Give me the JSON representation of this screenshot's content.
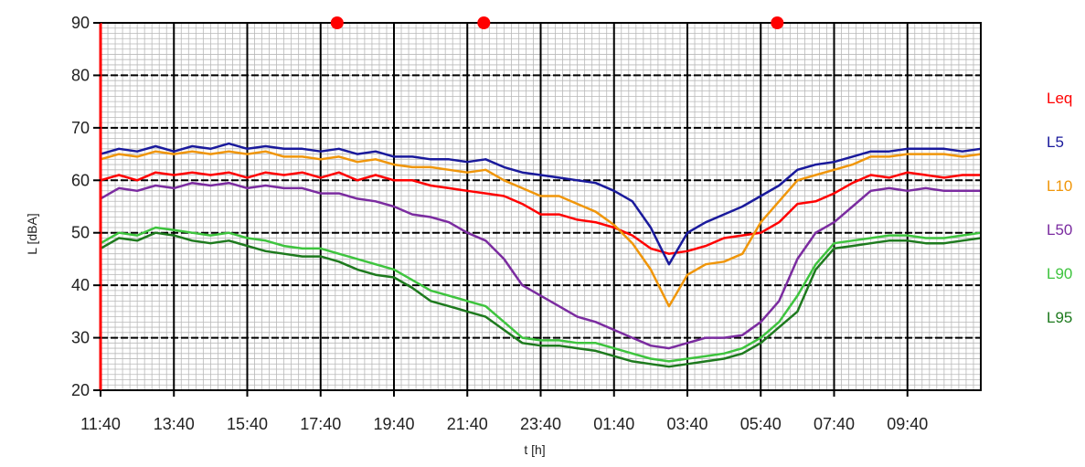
{
  "chart_data": {
    "type": "line",
    "xlabel": "t [h]",
    "ylabel": "L [dBA]",
    "ylim": [
      20,
      90
    ],
    "y_ticks": [
      90,
      80,
      70,
      60,
      50,
      40,
      30,
      20
    ],
    "x_tick_labels": [
      "11:40",
      "13:40",
      "15:40",
      "17:40",
      "19:40",
      "21:40",
      "23:40",
      "01:40",
      "03:40",
      "05:40",
      "07:40",
      "09:40"
    ],
    "grid": "on",
    "legend_placement": "right",
    "markers": [
      {
        "color": "#ff0000",
        "x_hours": 6.45
      },
      {
        "color": "#ff0000",
        "x_hours": 10.45
      },
      {
        "color": "#ff0000",
        "x_hours": 18.45
      }
    ],
    "series": [
      {
        "name": "Leq",
        "color": "#ff0000",
        "points": [
          [
            0,
            60
          ],
          [
            0.5,
            61
          ],
          [
            1,
            60
          ],
          [
            1.5,
            61.5
          ],
          [
            2,
            61
          ],
          [
            2.5,
            61.5
          ],
          [
            3,
            61
          ],
          [
            3.5,
            61.5
          ],
          [
            4,
            60.5
          ],
          [
            4.5,
            61.5
          ],
          [
            5,
            61
          ],
          [
            5.5,
            61.5
          ],
          [
            6,
            60.5
          ],
          [
            6.5,
            61.5
          ],
          [
            7,
            60
          ],
          [
            7.5,
            61
          ],
          [
            8,
            60
          ],
          [
            8.5,
            60
          ],
          [
            9,
            59
          ],
          [
            9.5,
            58.5
          ],
          [
            10,
            58
          ],
          [
            10.5,
            57.5
          ],
          [
            11,
            57
          ],
          [
            11.5,
            55.5
          ],
          [
            12,
            53.5
          ],
          [
            12.5,
            53.5
          ],
          [
            13,
            52.5
          ],
          [
            13.5,
            52
          ],
          [
            14,
            51
          ],
          [
            14.5,
            49.5
          ],
          [
            15,
            47
          ],
          [
            15.5,
            46
          ],
          [
            16,
            46.5
          ],
          [
            16.5,
            47.5
          ],
          [
            17,
            49
          ],
          [
            17.5,
            49.5
          ],
          [
            18,
            50
          ],
          [
            18.5,
            52
          ],
          [
            19,
            55.5
          ],
          [
            19.5,
            56
          ],
          [
            20,
            57.5
          ],
          [
            20.5,
            59.5
          ],
          [
            21,
            61
          ],
          [
            21.5,
            60.5
          ],
          [
            22,
            61.5
          ],
          [
            22.5,
            61
          ],
          [
            23,
            60.5
          ],
          [
            23.5,
            61
          ],
          [
            24,
            61
          ]
        ]
      },
      {
        "name": "L5",
        "color": "#1a1a9c",
        "points": [
          [
            0,
            65
          ],
          [
            0.5,
            66
          ],
          [
            1,
            65.5
          ],
          [
            1.5,
            66.5
          ],
          [
            2,
            65.5
          ],
          [
            2.5,
            66.5
          ],
          [
            3,
            66
          ],
          [
            3.5,
            67
          ],
          [
            4,
            66
          ],
          [
            4.5,
            66.5
          ],
          [
            5,
            66
          ],
          [
            5.5,
            66
          ],
          [
            6,
            65.5
          ],
          [
            6.5,
            66
          ],
          [
            7,
            65
          ],
          [
            7.5,
            65.5
          ],
          [
            8,
            64.5
          ],
          [
            8.5,
            64.5
          ],
          [
            9,
            64
          ],
          [
            9.5,
            64
          ],
          [
            10,
            63.5
          ],
          [
            10.5,
            64
          ],
          [
            11,
            62.5
          ],
          [
            11.5,
            61.5
          ],
          [
            12,
            61
          ],
          [
            12.5,
            60.5
          ],
          [
            13,
            60
          ],
          [
            13.5,
            59.5
          ],
          [
            14,
            58
          ],
          [
            14.5,
            56
          ],
          [
            15,
            51
          ],
          [
            15.5,
            44
          ],
          [
            16,
            50
          ],
          [
            16.5,
            52
          ],
          [
            17,
            53.5
          ],
          [
            17.5,
            55
          ],
          [
            18,
            57
          ],
          [
            18.5,
            59
          ],
          [
            19,
            62
          ],
          [
            19.5,
            63
          ],
          [
            20,
            63.5
          ],
          [
            20.5,
            64.5
          ],
          [
            21,
            65.5
          ],
          [
            21.5,
            65.5
          ],
          [
            22,
            66
          ],
          [
            22.5,
            66
          ],
          [
            23,
            66
          ],
          [
            23.5,
            65.5
          ],
          [
            24,
            66
          ]
        ]
      },
      {
        "name": "L10",
        "color": "#f0960a",
        "points": [
          [
            0,
            64
          ],
          [
            0.5,
            65
          ],
          [
            1,
            64.5
          ],
          [
            1.5,
            65.5
          ],
          [
            2,
            65
          ],
          [
            2.5,
            65.5
          ],
          [
            3,
            65
          ],
          [
            3.5,
            65.5
          ],
          [
            4,
            65
          ],
          [
            4.5,
            65.5
          ],
          [
            5,
            64.5
          ],
          [
            5.5,
            64.5
          ],
          [
            6,
            64
          ],
          [
            6.5,
            64.5
          ],
          [
            7,
            63.5
          ],
          [
            7.5,
            64
          ],
          [
            8,
            63
          ],
          [
            8.5,
            62.5
          ],
          [
            9,
            62.5
          ],
          [
            9.5,
            62
          ],
          [
            10,
            61.5
          ],
          [
            10.5,
            62
          ],
          [
            11,
            60
          ],
          [
            11.5,
            58.5
          ],
          [
            12,
            57
          ],
          [
            12.5,
            57
          ],
          [
            13,
            55.5
          ],
          [
            13.5,
            54
          ],
          [
            14,
            51.5
          ],
          [
            14.5,
            48
          ],
          [
            15,
            43
          ],
          [
            15.5,
            36
          ],
          [
            16,
            42
          ],
          [
            16.5,
            44
          ],
          [
            17,
            44.5
          ],
          [
            17.5,
            46
          ],
          [
            18,
            52
          ],
          [
            18.5,
            56
          ],
          [
            19,
            60
          ],
          [
            19.5,
            61
          ],
          [
            20,
            62
          ],
          [
            20.5,
            63
          ],
          [
            21,
            64.5
          ],
          [
            21.5,
            64.5
          ],
          [
            22,
            65
          ],
          [
            22.5,
            65
          ],
          [
            23,
            65
          ],
          [
            23.5,
            64.5
          ],
          [
            24,
            65
          ]
        ]
      },
      {
        "name": "L50",
        "color": "#7b2ca0",
        "points": [
          [
            0,
            56.5
          ],
          [
            0.5,
            58.5
          ],
          [
            1,
            58
          ],
          [
            1.5,
            59
          ],
          [
            2,
            58.5
          ],
          [
            2.5,
            59.5
          ],
          [
            3,
            59
          ],
          [
            3.5,
            59.5
          ],
          [
            4,
            58.5
          ],
          [
            4.5,
            59
          ],
          [
            5,
            58.5
          ],
          [
            5.5,
            58.5
          ],
          [
            6,
            57.5
          ],
          [
            6.5,
            57.5
          ],
          [
            7,
            56.5
          ],
          [
            7.5,
            56
          ],
          [
            8,
            55
          ],
          [
            8.5,
            53.5
          ],
          [
            9,
            53
          ],
          [
            9.5,
            52
          ],
          [
            10,
            50
          ],
          [
            10.5,
            48.5
          ],
          [
            11,
            45
          ],
          [
            11.5,
            40
          ],
          [
            12,
            38
          ],
          [
            12.5,
            36
          ],
          [
            13,
            34
          ],
          [
            13.5,
            33
          ],
          [
            14,
            31.5
          ],
          [
            14.5,
            30
          ],
          [
            15,
            28.5
          ],
          [
            15.5,
            28
          ],
          [
            16,
            29
          ],
          [
            16.5,
            30
          ],
          [
            17,
            30
          ],
          [
            17.5,
            30.5
          ],
          [
            18,
            33
          ],
          [
            18.5,
            37
          ],
          [
            19,
            45
          ],
          [
            19.5,
            50
          ],
          [
            20,
            52
          ],
          [
            20.5,
            55
          ],
          [
            21,
            58
          ],
          [
            21.5,
            58.5
          ],
          [
            22,
            58
          ],
          [
            22.5,
            58.5
          ],
          [
            23,
            58
          ],
          [
            23.5,
            58
          ],
          [
            24,
            58
          ]
        ]
      },
      {
        "name": "L90",
        "color": "#3ec43e",
        "points": [
          [
            0,
            48
          ],
          [
            0.5,
            50
          ],
          [
            1,
            49.5
          ],
          [
            1.5,
            51
          ],
          [
            2,
            50.5
          ],
          [
            2.5,
            50
          ],
          [
            3,
            49.5
          ],
          [
            3.5,
            50
          ],
          [
            4,
            49
          ],
          [
            4.5,
            48.5
          ],
          [
            5,
            47.5
          ],
          [
            5.5,
            47
          ],
          [
            6,
            47
          ],
          [
            6.5,
            46
          ],
          [
            7,
            45
          ],
          [
            7.5,
            44
          ],
          [
            8,
            43
          ],
          [
            8.5,
            41
          ],
          [
            9,
            39
          ],
          [
            9.5,
            38
          ],
          [
            10,
            37
          ],
          [
            10.5,
            36
          ],
          [
            11,
            33
          ],
          [
            11.5,
            30
          ],
          [
            12,
            29.5
          ],
          [
            12.5,
            29.5
          ],
          [
            13,
            29
          ],
          [
            13.5,
            29
          ],
          [
            14,
            28
          ],
          [
            14.5,
            27
          ],
          [
            15,
            26
          ],
          [
            15.5,
            25.5
          ],
          [
            16,
            26
          ],
          [
            16.5,
            26.5
          ],
          [
            17,
            27
          ],
          [
            17.5,
            28
          ],
          [
            18,
            30
          ],
          [
            18.5,
            33
          ],
          [
            19,
            38
          ],
          [
            19.5,
            44
          ],
          [
            20,
            48
          ],
          [
            20.5,
            48.5
          ],
          [
            21,
            49
          ],
          [
            21.5,
            49.5
          ],
          [
            22,
            49.5
          ],
          [
            22.5,
            49
          ],
          [
            23,
            49
          ],
          [
            23.5,
            49.5
          ],
          [
            24,
            50
          ]
        ]
      },
      {
        "name": "L95",
        "color": "#1e7a1e",
        "points": [
          [
            0,
            47
          ],
          [
            0.5,
            49
          ],
          [
            1,
            48.5
          ],
          [
            1.5,
            50
          ],
          [
            2,
            49.5
          ],
          [
            2.5,
            48.5
          ],
          [
            3,
            48
          ],
          [
            3.5,
            48.5
          ],
          [
            4,
            47.5
          ],
          [
            4.5,
            46.5
          ],
          [
            5,
            46
          ],
          [
            5.5,
            45.5
          ],
          [
            6,
            45.5
          ],
          [
            6.5,
            44.5
          ],
          [
            7,
            43
          ],
          [
            7.5,
            42
          ],
          [
            8,
            41.5
          ],
          [
            8.5,
            39.5
          ],
          [
            9,
            37
          ],
          [
            9.5,
            36
          ],
          [
            10,
            35
          ],
          [
            10.5,
            34
          ],
          [
            11,
            31.5
          ],
          [
            11.5,
            29
          ],
          [
            12,
            28.5
          ],
          [
            12.5,
            28.5
          ],
          [
            13,
            28
          ],
          [
            13.5,
            27.5
          ],
          [
            14,
            26.5
          ],
          [
            14.5,
            25.5
          ],
          [
            15,
            25
          ],
          [
            15.5,
            24.5
          ],
          [
            16,
            25
          ],
          [
            16.5,
            25.5
          ],
          [
            17,
            26
          ],
          [
            17.5,
            27
          ],
          [
            18,
            29
          ],
          [
            18.5,
            32
          ],
          [
            19,
            35
          ],
          [
            19.5,
            43
          ],
          [
            20,
            47
          ],
          [
            20.5,
            47.5
          ],
          [
            21,
            48
          ],
          [
            21.5,
            48.5
          ],
          [
            22,
            48.5
          ],
          [
            22.5,
            48
          ],
          [
            23,
            48
          ],
          [
            23.5,
            48.5
          ],
          [
            24,
            49
          ]
        ]
      }
    ]
  }
}
